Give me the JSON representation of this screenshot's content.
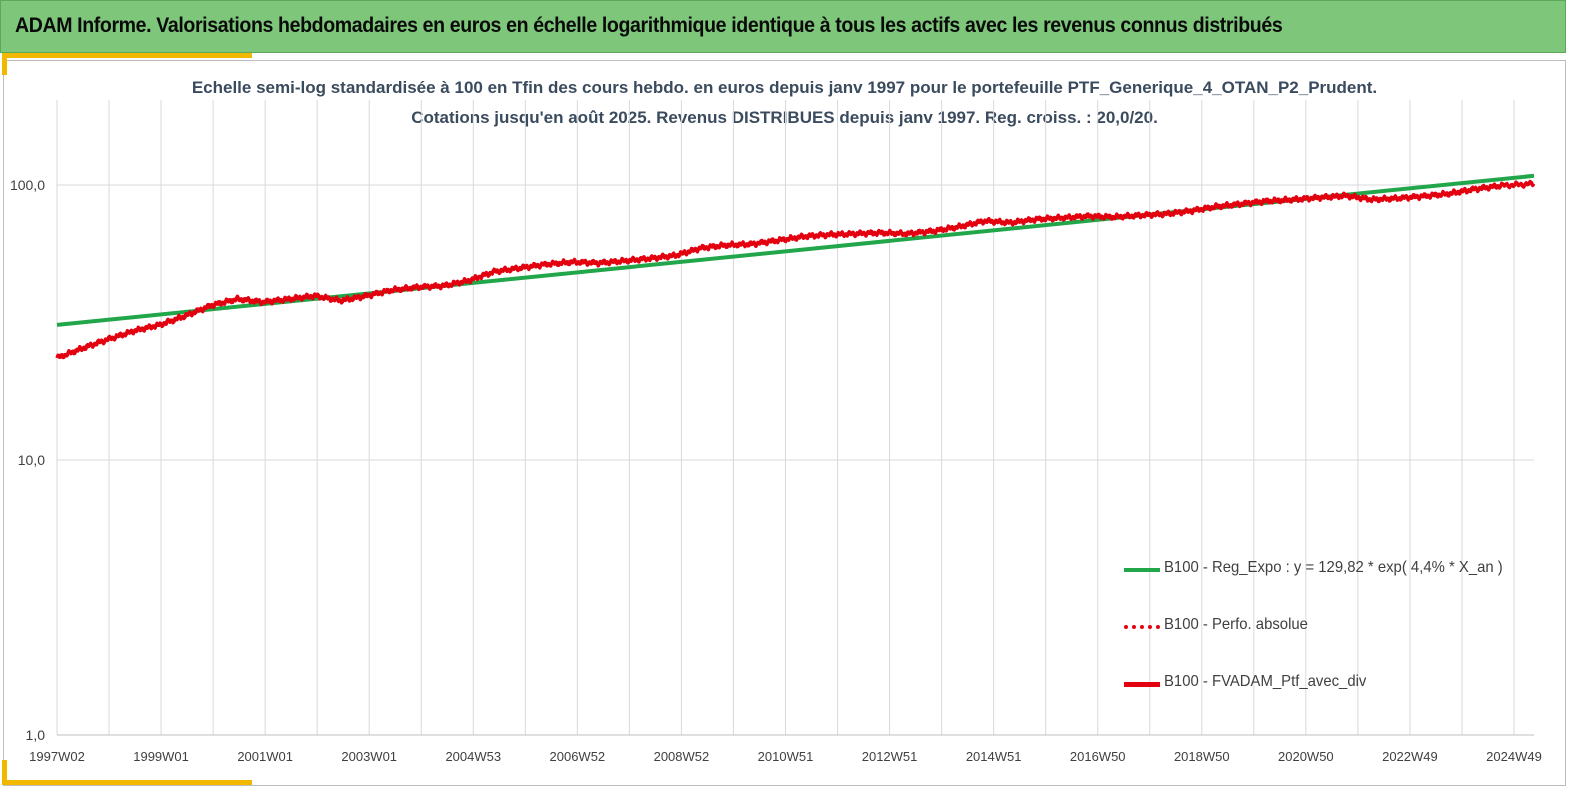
{
  "header": {
    "title": "ADAM Informe. Valorisations hebdomadaires en euros en échelle logarithmique identique à tous les actifs avec les revenus connus distribués"
  },
  "colors": {
    "banner": "#7dc67a",
    "accent_corner": "#f2b800",
    "regression": "#21a64a",
    "portfolio": "#e3000f",
    "grid": "#d9d9d9",
    "title_text": "#3b4b5e"
  },
  "chart_data": {
    "type": "line",
    "title_line1": "Echelle semi-log standardisée à 100 en Tfin des cours hebdo. en euros depuis janv 1997 pour le portefeuille PTF_Generique_4_OTAN_P2_Prudent.",
    "title_line2": "Cotations jusqu'en août 2025. Revenus DISTRIBUES depuis janv 1997. Reg. croiss. : 20,0/20.",
    "y_scale": "log",
    "ylim": [
      1,
      200
    ],
    "y_ticks": [
      "1,0",
      "10,0",
      "100,0"
    ],
    "x_ticks": [
      "1997W02",
      "1999W01",
      "2001W01",
      "2003W01",
      "2004W53",
      "2006W52",
      "2008W52",
      "2010W51",
      "2012W51",
      "2014W51",
      "2016W50",
      "2018W50",
      "2020W50",
      "2022W49",
      "2024W49"
    ],
    "x_range_years": [
      1997.0,
      2025.65
    ],
    "grid": true,
    "legend_position": "bottom-right",
    "series": [
      {
        "name": "B100 - Reg_Expo : y = 129,82 * exp( 4,4% *  X_an )",
        "style": "solid",
        "color": "#21a64a",
        "x": [
          1997.0,
          2025.65
        ],
        "y": [
          31,
          108
        ]
      },
      {
        "name": "B100 - Perfo. absolue",
        "style": "dotted",
        "color": "#e3000f",
        "x": [],
        "y": []
      },
      {
        "name": "B100 - FVADAM_Ptf_avec_div",
        "style": "solid",
        "color": "#e3000f",
        "x": [
          1997.0,
          1997.5,
          1998.0,
          1998.5,
          1999.0,
          1999.5,
          2000.0,
          2000.5,
          2001.0,
          2001.5,
          2002.0,
          2002.5,
          2003.0,
          2003.5,
          2004.0,
          2004.5,
          2005.0,
          2005.5,
          2006.0,
          2006.5,
          2007.0,
          2007.5,
          2008.0,
          2008.5,
          2009.0,
          2009.5,
          2010.0,
          2010.5,
          2011.0,
          2011.5,
          2012.0,
          2012.5,
          2013.0,
          2013.5,
          2014.0,
          2014.5,
          2015.0,
          2015.5,
          2016.0,
          2016.5,
          2017.0,
          2017.5,
          2018.0,
          2018.5,
          2019.0,
          2019.5,
          2020.0,
          2020.5,
          2021.0,
          2021.5,
          2022.0,
          2022.5,
          2023.0,
          2023.5,
          2024.0,
          2024.5,
          2025.0,
          2025.65
        ],
        "y": [
          23.5,
          25.5,
          27.5,
          29.5,
          31.0,
          33.5,
          36.5,
          38.5,
          37.5,
          38.5,
          39.5,
          38.0,
          39.5,
          41.5,
          42.5,
          43.0,
          45.0,
          48.5,
          50.0,
          51.5,
          52.5,
          52.0,
          53.0,
          54.0,
          55.5,
          59.0,
          60.5,
          61.0,
          63.0,
          65.0,
          66.0,
          66.5,
          67.0,
          66.5,
          68.0,
          70.5,
          74.0,
          73.0,
          75.0,
          76.0,
          77.0,
          76.5,
          77.5,
          78.5,
          80.5,
          83.5,
          85.5,
          87.5,
          88.5,
          90.0,
          91.5,
          88.5,
          89.5,
          91.0,
          93.0,
          96.5,
          99.5,
          101.0
        ]
      }
    ]
  }
}
